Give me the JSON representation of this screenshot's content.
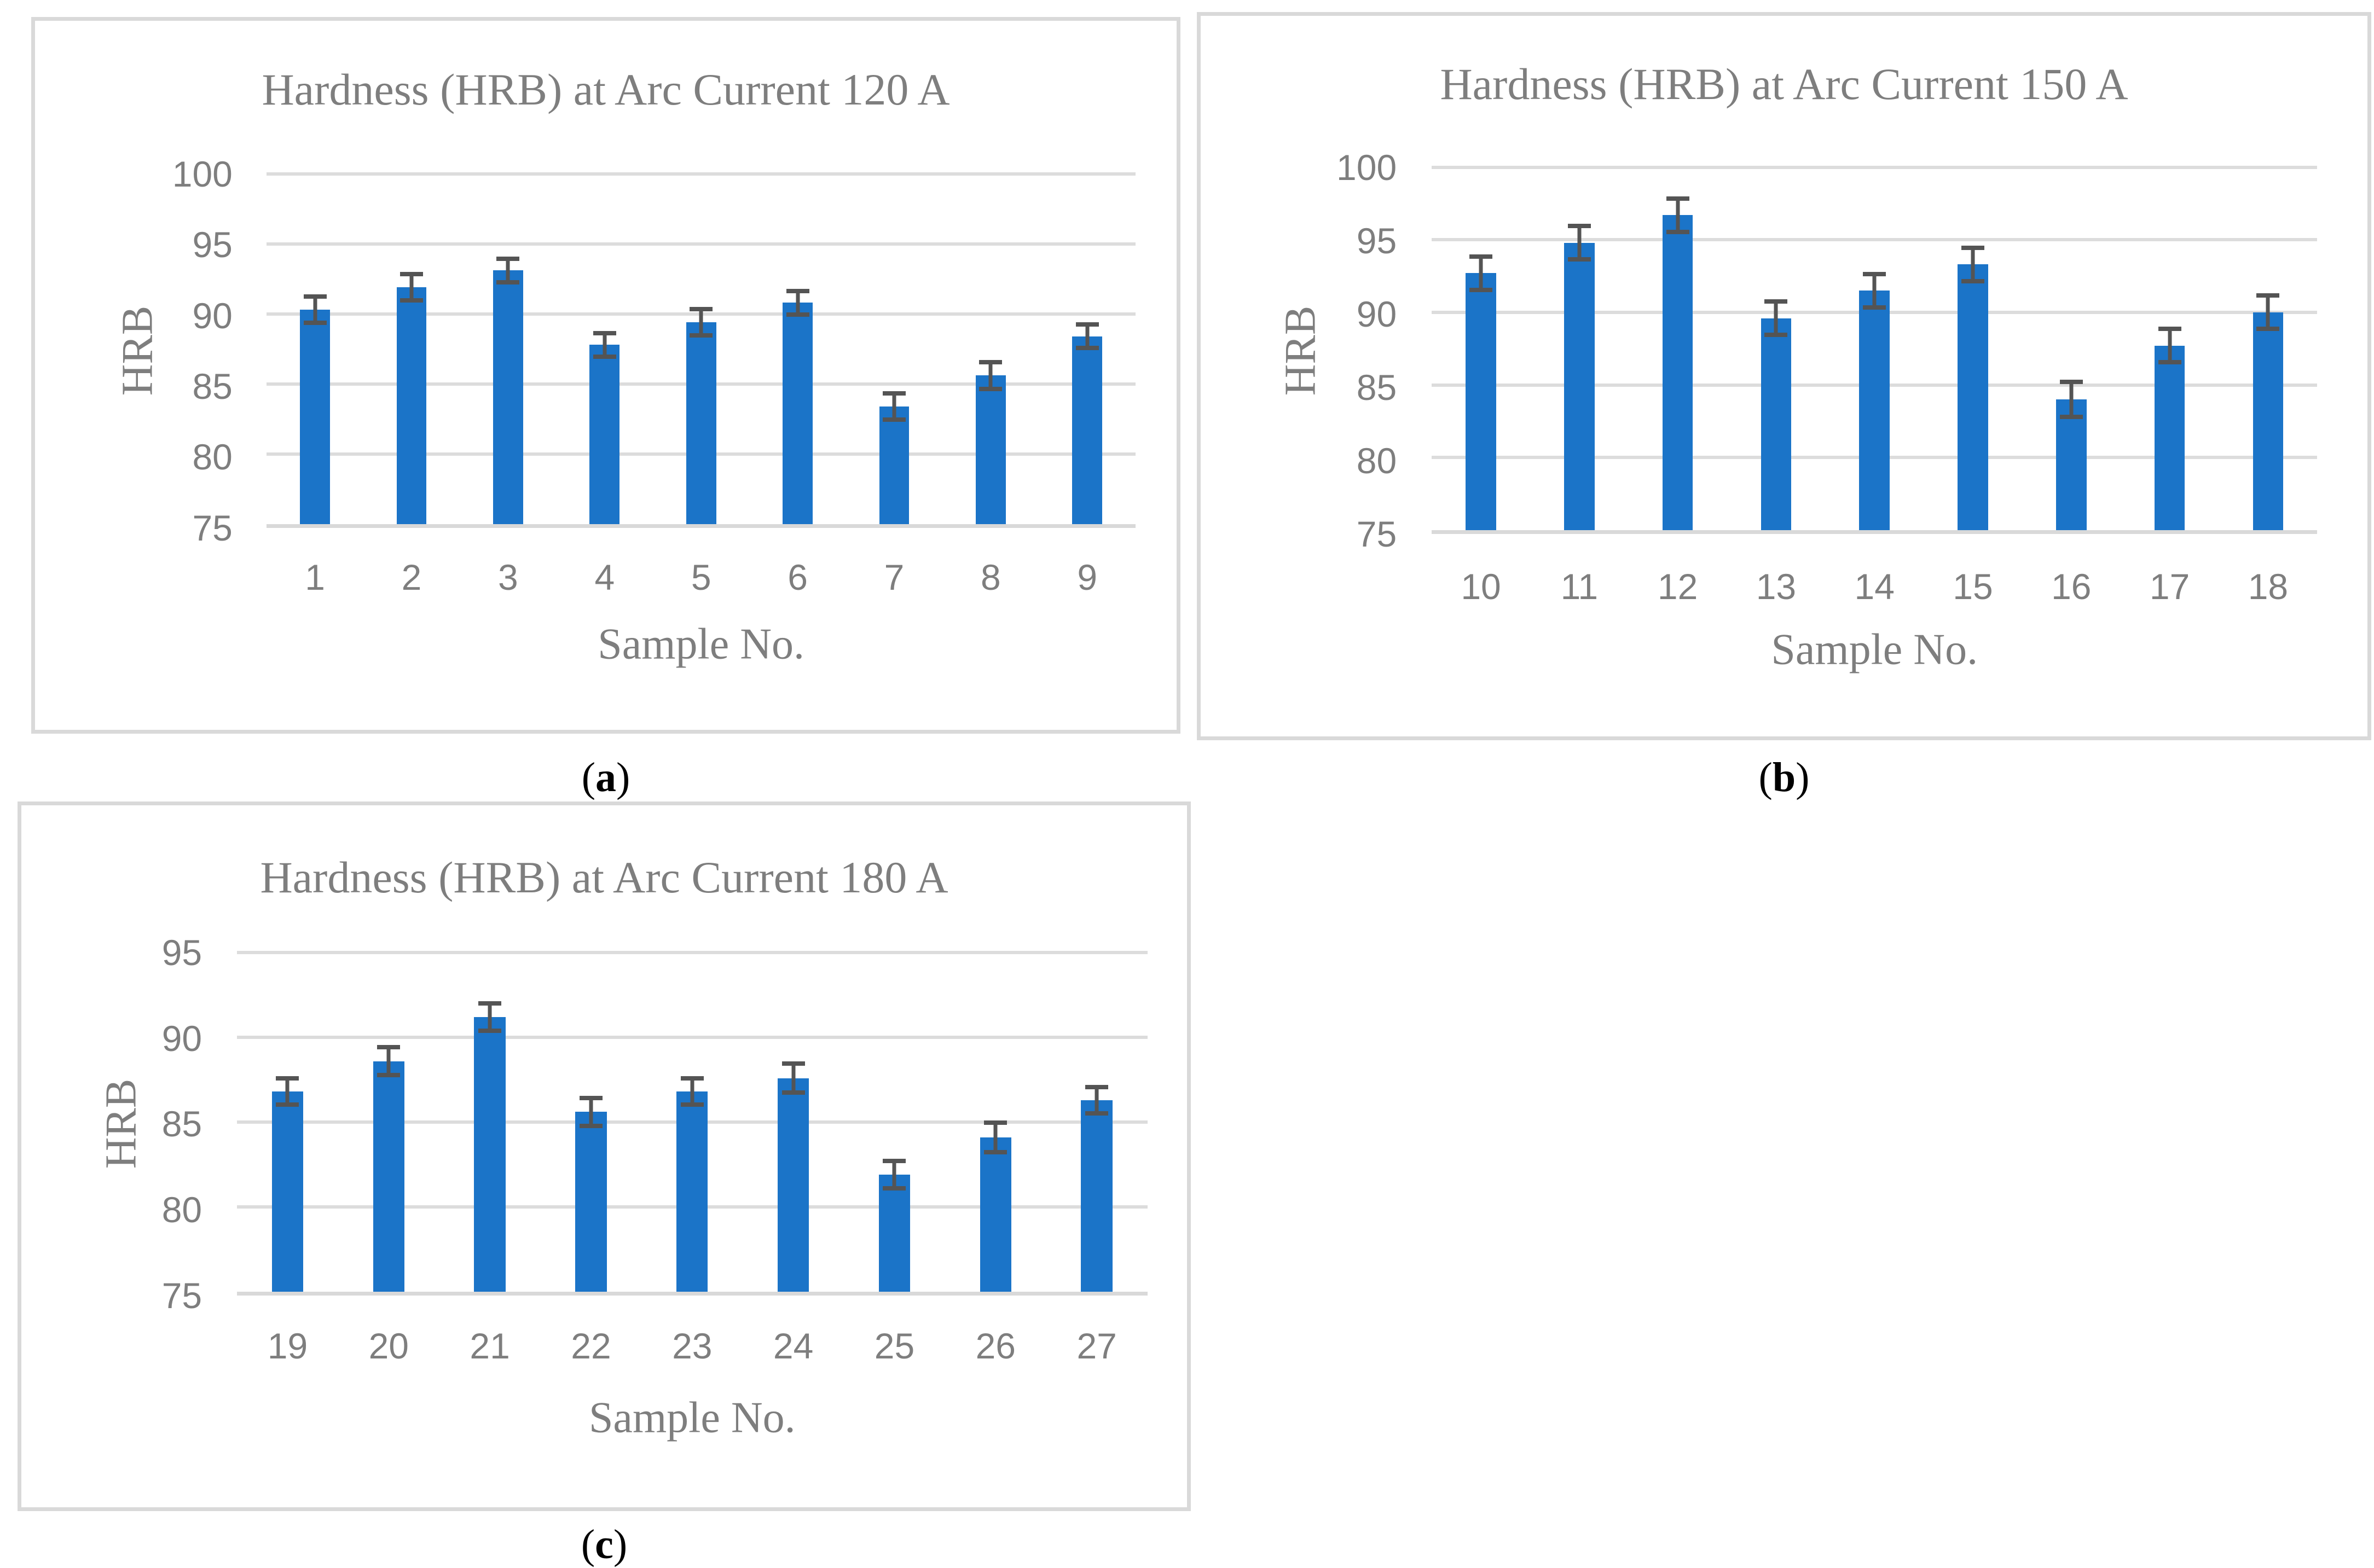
{
  "figure": {
    "captions": [
      {
        "open": "(",
        "letter": "a",
        "close": ")"
      },
      {
        "open": "(",
        "letter": "b",
        "close": ")"
      },
      {
        "open": "(",
        "letter": "c",
        "close": ")"
      }
    ]
  },
  "colors": {
    "bar_blue": "#1B74C8",
    "error_bar": "#545454",
    "gridline": "#DCDCDC",
    "panel_border": "#D9D9D9",
    "text_gray": "#7E7E7E",
    "caption_black": "#000000"
  },
  "chart_data": [
    {
      "type": "bar",
      "title": "Hardness (HRB) at Arc Current 120 A",
      "xlabel": "Sample No.",
      "ylabel": "HRB",
      "categories": [
        "1",
        "2",
        "3",
        "4",
        "5",
        "6",
        "7",
        "8",
        "9"
      ],
      "values": [
        90.3,
        91.9,
        93.1,
        87.8,
        89.4,
        90.8,
        83.4,
        85.6,
        88.4
      ],
      "errors": [
        1.1,
        1.1,
        1.0,
        1.0,
        1.1,
        1.0,
        1.1,
        1.1,
        1.0
      ],
      "ylim": [
        75,
        100
      ],
      "yticks": [
        75,
        80,
        85,
        90,
        95,
        100
      ],
      "grid": true,
      "legend": "none"
    },
    {
      "type": "bar",
      "title": "Hardness (HRB) at Arc Current 150 A",
      "xlabel": "Sample No.",
      "ylabel": "HRB",
      "categories": [
        "10",
        "11",
        "12",
        "13",
        "14",
        "15",
        "16",
        "17",
        "18"
      ],
      "values": [
        92.7,
        94.8,
        96.7,
        89.6,
        91.5,
        93.3,
        84.0,
        87.7,
        90.0
      ],
      "errors": [
        1.3,
        1.3,
        1.3,
        1.3,
        1.3,
        1.3,
        1.35,
        1.3,
        1.3
      ],
      "ylim": [
        75,
        100
      ],
      "yticks": [
        75,
        80,
        85,
        90,
        95,
        100
      ],
      "grid": true,
      "legend": "none"
    },
    {
      "type": "bar",
      "title": "Hardness (HRB) at Arc Current 180 A",
      "xlabel": "Sample No.",
      "ylabel": "HRB",
      "categories": [
        "19",
        "20",
        "21",
        "22",
        "23",
        "24",
        "25",
        "26",
        "27"
      ],
      "values": [
        86.8,
        88.6,
        91.2,
        85.6,
        86.8,
        87.6,
        81.9,
        84.1,
        86.3
      ],
      "errors": [
        0.9,
        0.95,
        0.95,
        0.95,
        0.9,
        1.0,
        0.95,
        1.0,
        0.9
      ],
      "ylim": [
        75,
        95
      ],
      "yticks": [
        75,
        80,
        85,
        90,
        95
      ],
      "grid": true,
      "legend": "none"
    }
  ]
}
